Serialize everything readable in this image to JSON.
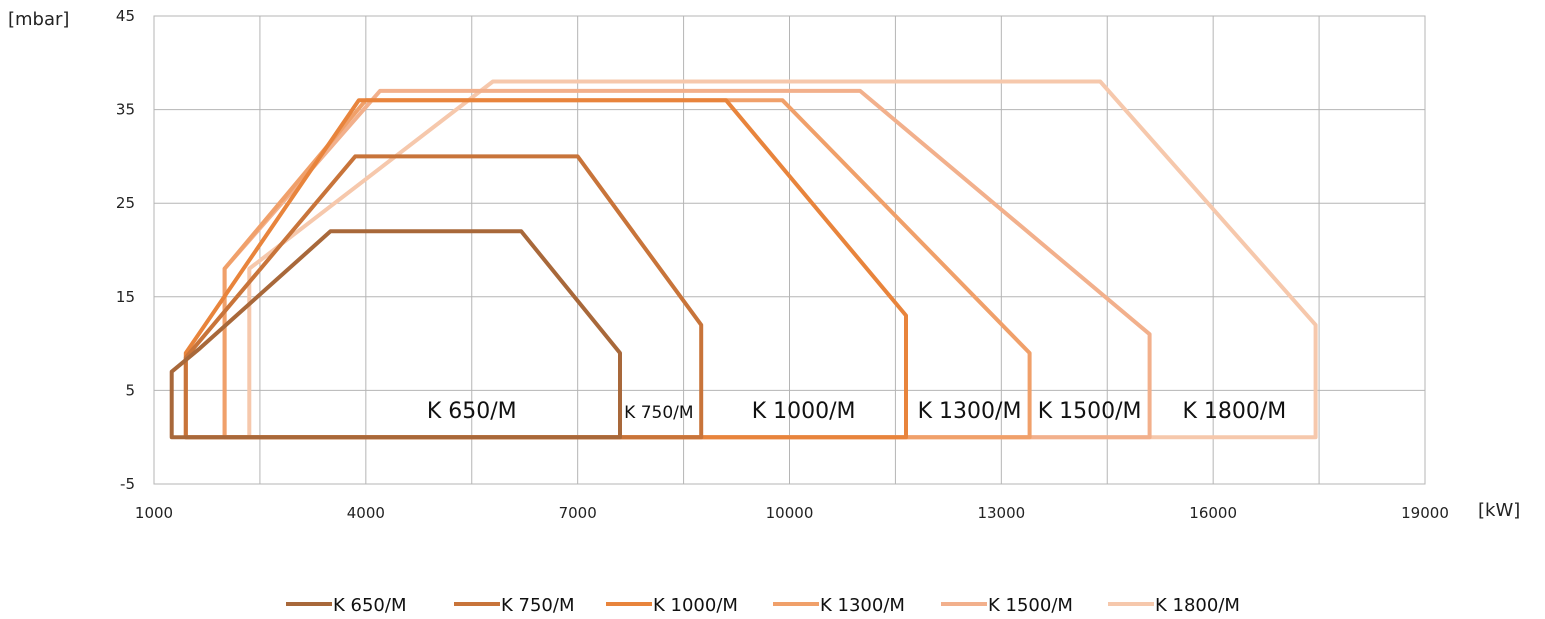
{
  "chart_data": {
    "type": "line",
    "title": "",
    "xlabel": "[kW]",
    "ylabel": "[mbar]",
    "xlim": [
      1000,
      19000
    ],
    "ylim": [
      -5,
      45
    ],
    "x_ticks": [
      "1000",
      "4000",
      "7000",
      "10000",
      "13000",
      "16000",
      "19000"
    ],
    "y_ticks": [
      "45",
      "35",
      "25",
      "15",
      "5",
      "-5"
    ],
    "grid": true,
    "legend_position": "bottom",
    "series": [
      {
        "name": "K 650/M",
        "color": "#a8683a",
        "area_label": "K 650/M",
        "points": [
          [
            1250,
            0
          ],
          [
            1250,
            7
          ],
          [
            1650,
            9.5
          ],
          [
            3500,
            22
          ],
          [
            6200,
            22
          ],
          [
            7600,
            9
          ],
          [
            7600,
            0
          ],
          [
            1250,
            0
          ]
        ]
      },
      {
        "name": "K 750/M",
        "color": "#c8743a",
        "area_label": "K 750/M",
        "points": [
          [
            1450,
            0
          ],
          [
            1450,
            8.5
          ],
          [
            3850,
            30
          ],
          [
            7000,
            30
          ],
          [
            8750,
            12
          ],
          [
            8750,
            0
          ],
          [
            1450,
            0
          ]
        ]
      },
      {
        "name": "K 1000/M",
        "color": "#e8843c",
        "area_label": "K 1000/M",
        "points": [
          [
            1450,
            0
          ],
          [
            1450,
            9
          ],
          [
            3900,
            36
          ],
          [
            9100,
            36
          ],
          [
            11650,
            13
          ],
          [
            11650,
            0
          ],
          [
            1450,
            0
          ]
        ]
      },
      {
        "name": "K 1300/M",
        "color": "#f0a06a",
        "area_label": "K 1300/M",
        "points": [
          [
            2000,
            0
          ],
          [
            2000,
            18
          ],
          [
            4000,
            36
          ],
          [
            9900,
            36
          ],
          [
            13400,
            9
          ],
          [
            13400,
            0
          ],
          [
            2000,
            0
          ]
        ]
      },
      {
        "name": "K 1500/M",
        "color": "#f2b08c",
        "area_label": "K 1500/M",
        "points": [
          [
            2000,
            0
          ],
          [
            2000,
            18
          ],
          [
            4200,
            37
          ],
          [
            11000,
            37
          ],
          [
            15100,
            11
          ],
          [
            15100,
            0
          ],
          [
            2000,
            0
          ]
        ]
      },
      {
        "name": "K 1800/M",
        "color": "#f6c8ac",
        "area_label": "K 1800/M",
        "points": [
          [
            2350,
            0
          ],
          [
            2350,
            18
          ],
          [
            5800,
            38
          ],
          [
            14400,
            38
          ],
          [
            17450,
            12
          ],
          [
            17450,
            0
          ],
          [
            2350,
            0
          ]
        ]
      }
    ]
  }
}
